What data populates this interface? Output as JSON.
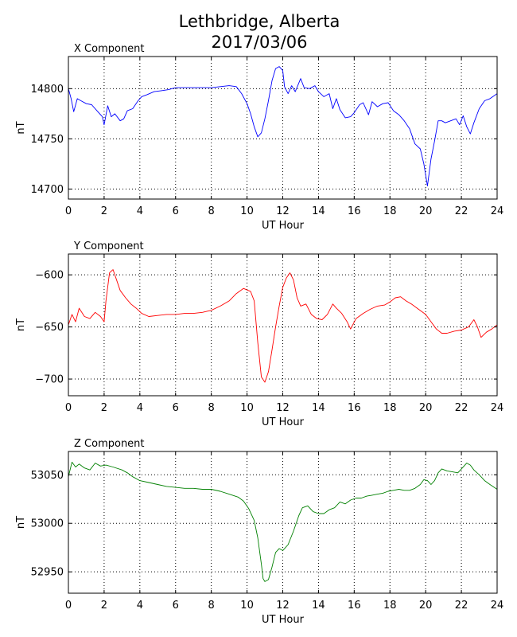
{
  "title_line1": "Lethbridge, Alberta",
  "title_line2": "2017/03/06",
  "colors": {
    "x": "#0000ff",
    "y": "#ff0000",
    "z": "#008000",
    "axis": "#000000",
    "grid": "#000000"
  },
  "chart_data": [
    {
      "type": "line",
      "panel_title": "X Component",
      "xlabel": "UT Hour",
      "ylabel": "nT",
      "xlim": [
        0,
        24
      ],
      "ylim": [
        14690,
        14832
      ],
      "xticks": [
        0,
        2,
        4,
        6,
        8,
        10,
        12,
        14,
        16,
        18,
        20,
        22,
        24
      ],
      "yticks": [
        14700,
        14750,
        14800
      ],
      "grid": true,
      "series": [
        {
          "color": "#0000ff",
          "points": [
            [
              0,
              14800
            ],
            [
              0.15,
              14790
            ],
            [
              0.3,
              14777
            ],
            [
              0.5,
              14790
            ],
            [
              0.7,
              14788
            ],
            [
              1.0,
              14785
            ],
            [
              1.3,
              14784
            ],
            [
              1.6,
              14778
            ],
            [
              1.9,
              14772
            ],
            [
              2.0,
              14764
            ],
            [
              2.2,
              14783
            ],
            [
              2.4,
              14772
            ],
            [
              2.6,
              14775
            ],
            [
              2.9,
              14768
            ],
            [
              3.1,
              14770
            ],
            [
              3.3,
              14778
            ],
            [
              3.6,
              14780
            ],
            [
              3.9,
              14788
            ],
            [
              4.1,
              14792
            ],
            [
              4.4,
              14794
            ],
            [
              4.8,
              14797
            ],
            [
              5.2,
              14798
            ],
            [
              5.6,
              14799
            ],
            [
              6.0,
              14801
            ],
            [
              6.5,
              14801
            ],
            [
              7.0,
              14801
            ],
            [
              7.5,
              14801
            ],
            [
              8.0,
              14801
            ],
            [
              8.5,
              14802
            ],
            [
              9.0,
              14803
            ],
            [
              9.4,
              14802
            ],
            [
              9.7,
              14795
            ],
            [
              10.0,
              14785
            ],
            [
              10.2,
              14775
            ],
            [
              10.4,
              14762
            ],
            [
              10.6,
              14752
            ],
            [
              10.8,
              14756
            ],
            [
              11.0,
              14770
            ],
            [
              11.2,
              14788
            ],
            [
              11.4,
              14808
            ],
            [
              11.6,
              14820
            ],
            [
              11.8,
              14822
            ],
            [
              12.0,
              14818
            ],
            [
              12.1,
              14802
            ],
            [
              12.3,
              14795
            ],
            [
              12.5,
              14803
            ],
            [
              12.7,
              14797
            ],
            [
              13.0,
              14810
            ],
            [
              13.2,
              14801
            ],
            [
              13.5,
              14800
            ],
            [
              13.8,
              14803
            ],
            [
              14.0,
              14797
            ],
            [
              14.3,
              14792
            ],
            [
              14.6,
              14795
            ],
            [
              14.8,
              14780
            ],
            [
              15.0,
              14790
            ],
            [
              15.2,
              14779
            ],
            [
              15.5,
              14771
            ],
            [
              15.8,
              14772
            ],
            [
              16.0,
              14776
            ],
            [
              16.3,
              14784
            ],
            [
              16.5,
              14786
            ],
            [
              16.8,
              14774
            ],
            [
              17.0,
              14787
            ],
            [
              17.3,
              14782
            ],
            [
              17.6,
              14785
            ],
            [
              17.9,
              14786
            ],
            [
              18.2,
              14778
            ],
            [
              18.5,
              14774
            ],
            [
              18.8,
              14768
            ],
            [
              19.1,
              14760
            ],
            [
              19.4,
              14745
            ],
            [
              19.7,
              14740
            ],
            [
              19.9,
              14725
            ],
            [
              20.1,
              14703
            ],
            [
              20.3,
              14730
            ],
            [
              20.5,
              14748
            ],
            [
              20.7,
              14768
            ],
            [
              20.9,
              14768
            ],
            [
              21.1,
              14766
            ],
            [
              21.4,
              14768
            ],
            [
              21.7,
              14770
            ],
            [
              21.9,
              14764
            ],
            [
              22.1,
              14773
            ],
            [
              22.3,
              14762
            ],
            [
              22.5,
              14755
            ],
            [
              22.7,
              14766
            ],
            [
              23.0,
              14780
            ],
            [
              23.3,
              14788
            ],
            [
              23.6,
              14790
            ],
            [
              24.0,
              14795
            ]
          ]
        }
      ]
    },
    {
      "type": "line",
      "panel_title": "Y Component",
      "xlabel": "UT Hour",
      "ylabel": "nT",
      "xlim": [
        0,
        24
      ],
      "ylim": [
        -716,
        -580
      ],
      "xticks": [
        0,
        2,
        4,
        6,
        8,
        10,
        12,
        14,
        16,
        18,
        20,
        22,
        24
      ],
      "yticks": [
        -700,
        -650,
        -600
      ],
      "grid": true,
      "series": [
        {
          "color": "#ff0000",
          "points": [
            [
              0,
              -648
            ],
            [
              0.2,
              -638
            ],
            [
              0.4,
              -645
            ],
            [
              0.6,
              -632
            ],
            [
              0.9,
              -640
            ],
            [
              1.2,
              -642
            ],
            [
              1.5,
              -636
            ],
            [
              1.8,
              -640
            ],
            [
              2.0,
              -645
            ],
            [
              2.1,
              -625
            ],
            [
              2.3,
              -598
            ],
            [
              2.5,
              -595
            ],
            [
              2.7,
              -605
            ],
            [
              2.9,
              -615
            ],
            [
              3.2,
              -622
            ],
            [
              3.5,
              -628
            ],
            [
              3.8,
              -632
            ],
            [
              4.1,
              -637
            ],
            [
              4.5,
              -640
            ],
            [
              5.0,
              -639
            ],
            [
              5.5,
              -638
            ],
            [
              6.0,
              -638
            ],
            [
              6.5,
              -637
            ],
            [
              7.0,
              -637
            ],
            [
              7.5,
              -636
            ],
            [
              8.0,
              -634
            ],
            [
              8.5,
              -630
            ],
            [
              9.0,
              -625
            ],
            [
              9.4,
              -618
            ],
            [
              9.8,
              -613
            ],
            [
              10.2,
              -616
            ],
            [
              10.4,
              -625
            ],
            [
              10.6,
              -665
            ],
            [
              10.8,
              -698
            ],
            [
              11.0,
              -703
            ],
            [
              11.2,
              -693
            ],
            [
              11.4,
              -672
            ],
            [
              11.6,
              -650
            ],
            [
              11.8,
              -630
            ],
            [
              12.0,
              -612
            ],
            [
              12.2,
              -603
            ],
            [
              12.4,
              -598
            ],
            [
              12.6,
              -605
            ],
            [
              12.8,
              -622
            ],
            [
              13.0,
              -630
            ],
            [
              13.3,
              -628
            ],
            [
              13.6,
              -638
            ],
            [
              13.9,
              -642
            ],
            [
              14.2,
              -643
            ],
            [
              14.5,
              -638
            ],
            [
              14.8,
              -628
            ],
            [
              15.0,
              -632
            ],
            [
              15.3,
              -637
            ],
            [
              15.6,
              -645
            ],
            [
              15.8,
              -652
            ],
            [
              16.1,
              -642
            ],
            [
              16.5,
              -637
            ],
            [
              16.9,
              -633
            ],
            [
              17.3,
              -630
            ],
            [
              17.7,
              -629
            ],
            [
              18.0,
              -626
            ],
            [
              18.3,
              -622
            ],
            [
              18.6,
              -621
            ],
            [
              18.9,
              -625
            ],
            [
              19.2,
              -628
            ],
            [
              19.6,
              -633
            ],
            [
              20.0,
              -638
            ],
            [
              20.3,
              -645
            ],
            [
              20.6,
              -652
            ],
            [
              20.9,
              -656
            ],
            [
              21.2,
              -656
            ],
            [
              21.6,
              -654
            ],
            [
              22.0,
              -653
            ],
            [
              22.4,
              -650
            ],
            [
              22.7,
              -643
            ],
            [
              22.9,
              -650
            ],
            [
              23.1,
              -660
            ],
            [
              23.4,
              -655
            ],
            [
              23.7,
              -652
            ],
            [
              24.0,
              -648
            ]
          ]
        }
      ]
    },
    {
      "type": "line",
      "panel_title": "Z Component",
      "xlabel": "UT Hour",
      "ylabel": "nT",
      "xlim": [
        0,
        24
      ],
      "ylim": [
        52928,
        53074
      ],
      "xticks": [
        0,
        2,
        4,
        6,
        8,
        10,
        12,
        14,
        16,
        18,
        20,
        22,
        24
      ],
      "yticks": [
        52950,
        53000,
        53050
      ],
      "grid": true,
      "series": [
        {
          "color": "#008000",
          "points": [
            [
              0,
              53048
            ],
            [
              0.2,
              53063
            ],
            [
              0.4,
              53058
            ],
            [
              0.6,
              53061
            ],
            [
              0.9,
              53057
            ],
            [
              1.2,
              53055
            ],
            [
              1.5,
              53062
            ],
            [
              1.8,
              53059
            ],
            [
              2.1,
              53060
            ],
            [
              2.5,
              53058
            ],
            [
              3.0,
              53055
            ],
            [
              3.3,
              53052
            ],
            [
              3.6,
              53048
            ],
            [
              4.0,
              53044
            ],
            [
              4.5,
              53042
            ],
            [
              5.0,
              53040
            ],
            [
              5.5,
              53038
            ],
            [
              6.0,
              53037
            ],
            [
              6.5,
              53036
            ],
            [
              7.0,
              53036
            ],
            [
              7.5,
              53035
            ],
            [
              8.0,
              53035
            ],
            [
              8.5,
              53033
            ],
            [
              9.0,
              53030
            ],
            [
              9.5,
              53027
            ],
            [
              9.8,
              53023
            ],
            [
              10.1,
              53015
            ],
            [
              10.4,
              53003
            ],
            [
              10.6,
              52985
            ],
            [
              10.8,
              52958
            ],
            [
              10.9,
              52943
            ],
            [
              11.0,
              52940
            ],
            [
              11.2,
              52942
            ],
            [
              11.4,
              52955
            ],
            [
              11.6,
              52970
            ],
            [
              11.8,
              52974
            ],
            [
              12.0,
              52972
            ],
            [
              12.3,
              52978
            ],
            [
              12.6,
              52992
            ],
            [
              12.9,
              53008
            ],
            [
              13.1,
              53016
            ],
            [
              13.4,
              53018
            ],
            [
              13.7,
              53012
            ],
            [
              14.0,
              53010
            ],
            [
              14.3,
              53010
            ],
            [
              14.6,
              53014
            ],
            [
              14.9,
              53016
            ],
            [
              15.2,
              53022
            ],
            [
              15.5,
              53020
            ],
            [
              15.8,
              53024
            ],
            [
              16.1,
              53026
            ],
            [
              16.4,
              53026
            ],
            [
              16.7,
              53028
            ],
            [
              17.0,
              53029
            ],
            [
              17.3,
              53030
            ],
            [
              17.6,
              53031
            ],
            [
              17.9,
              53033
            ],
            [
              18.2,
              53034
            ],
            [
              18.5,
              53035
            ],
            [
              18.8,
              53034
            ],
            [
              19.1,
              53034
            ],
            [
              19.4,
              53036
            ],
            [
              19.7,
              53040
            ],
            [
              19.9,
              53045
            ],
            [
              20.1,
              53044
            ],
            [
              20.3,
              53040
            ],
            [
              20.5,
              53044
            ],
            [
              20.7,
              53052
            ],
            [
              20.9,
              53056
            ],
            [
              21.2,
              53054
            ],
            [
              21.5,
              53053
            ],
            [
              21.8,
              53052
            ],
            [
              22.0,
              53056
            ],
            [
              22.3,
              53062
            ],
            [
              22.5,
              53060
            ],
            [
              22.7,
              53055
            ],
            [
              23.0,
              53050
            ],
            [
              23.3,
              53044
            ],
            [
              23.6,
              53040
            ],
            [
              24.0,
              53035
            ]
          ]
        }
      ]
    }
  ]
}
